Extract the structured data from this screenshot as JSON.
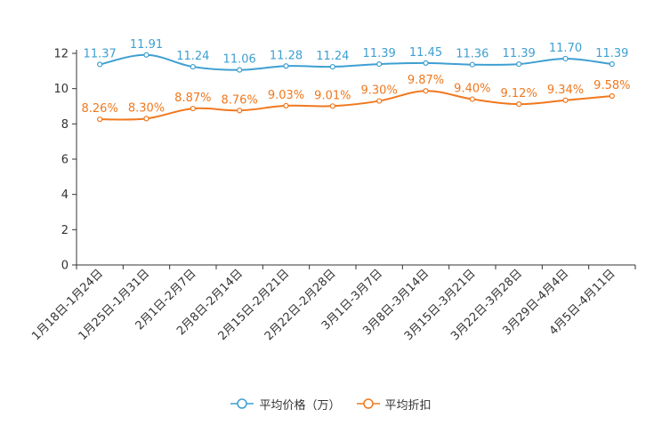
{
  "chart_data": {
    "type": "line",
    "categories": [
      "1月18日-1月24日",
      "1月25日-1月31日",
      "2月1日-2月7日",
      "2月8日-2月14日",
      "2月15日-2月21日",
      "2月22日-2月28日",
      "3月1日-3月7日",
      "3月8日-3月14日",
      "3月15日-3月21日",
      "3月22日-3月28日",
      "3月29日-4月4日",
      "4月5日-4月11日"
    ],
    "series": [
      {
        "name": "平均价格（万）",
        "color": "#3e9fd1",
        "values": [
          11.37,
          11.91,
          11.24,
          11.06,
          11.28,
          11.24,
          11.39,
          11.45,
          11.36,
          11.39,
          11.7,
          11.39
        ],
        "labels": [
          "11.37",
          "11.91",
          "11.24",
          "11.06",
          "11.28",
          "11.24",
          "11.39",
          "11.45",
          "11.36",
          "11.39",
          "11.70",
          "11.39"
        ]
      },
      {
        "name": "平均折扣",
        "color": "#f0781e",
        "values": [
          8.26,
          8.3,
          8.87,
          8.76,
          9.03,
          9.01,
          9.3,
          9.87,
          9.4,
          9.12,
          9.34,
          9.58
        ],
        "labels": [
          "8.26%",
          "8.30%",
          "8.87%",
          "8.76%",
          "9.03%",
          "9.01%",
          "9.30%",
          "9.87%",
          "9.40%",
          "9.12%",
          "9.34%",
          "9.58%"
        ]
      }
    ],
    "yticks": [
      "0",
      "2",
      "4",
      "6",
      "8",
      "10",
      "12"
    ],
    "ylim": [
      0,
      12
    ],
    "title": "",
    "xlabel": "",
    "ylabel": "",
    "grid": false,
    "legend_position": "bottom-center"
  }
}
